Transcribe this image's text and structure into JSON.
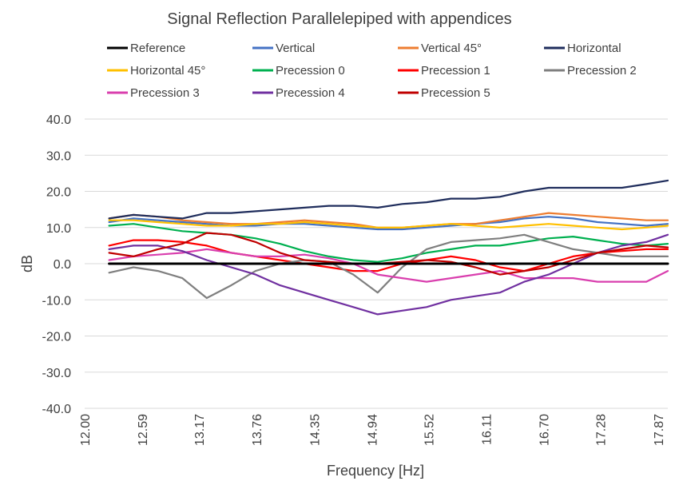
{
  "chart_data": {
    "type": "line",
    "title": "Signal Reflection Parallelepiped with appendices",
    "xlabel": "Frequency [Hz]",
    "ylabel": "dB",
    "xlim": [
      12.0,
      17.97
    ],
    "ylim": [
      -40,
      40
    ],
    "x_ticks": [
      "12.00",
      "12.59",
      "13.17",
      "13.76",
      "14.35",
      "14.94",
      "15.52",
      "16.11",
      "16.70",
      "17.28",
      "17.87"
    ],
    "y_ticks": [
      "40.0",
      "30.0",
      "20.0",
      "10.0",
      "0.0",
      "-10.0",
      "-20.0",
      "-30.0",
      "-40.0"
    ],
    "grid": true,
    "legend_position": "top",
    "x": [
      12.25,
      12.5,
      12.75,
      13.0,
      13.25,
      13.5,
      13.75,
      14.0,
      14.25,
      14.5,
      14.75,
      15.0,
      15.25,
      15.5,
      15.75,
      16.0,
      16.25,
      16.5,
      16.75,
      17.0,
      17.25,
      17.5,
      17.75,
      17.97
    ],
    "series": [
      {
        "name": "Reference",
        "color": "#000000",
        "values": [
          0,
          0,
          0,
          0,
          0,
          0,
          0,
          0,
          0,
          0,
          0,
          0,
          0,
          0,
          0,
          0,
          0,
          0,
          0,
          0,
          0,
          0,
          0,
          0
        ]
      },
      {
        "name": "Vertical",
        "color": "#4472C4",
        "values": [
          11.5,
          12.5,
          12,
          11.5,
          11,
          10.5,
          10.5,
          11,
          11,
          10.5,
          10,
          9.5,
          9.5,
          10,
          10.5,
          11,
          11.5,
          12.5,
          13,
          12.5,
          11.5,
          11,
          10.5,
          11
        ]
      },
      {
        "name": "Vertical 45°",
        "color": "#ED7D31",
        "values": [
          12.5,
          13.5,
          13,
          12,
          11.5,
          11,
          11,
          11.5,
          12,
          11.5,
          11,
          10,
          10,
          10.5,
          11,
          11,
          12,
          13,
          14,
          13.5,
          13,
          12.5,
          12,
          12
        ]
      },
      {
        "name": "Horizontal",
        "color": "#1F2D5C",
        "values": [
          12.5,
          13.5,
          13,
          12.5,
          14,
          14,
          14.5,
          15,
          15.5,
          16,
          16,
          15.5,
          16.5,
          17,
          18,
          18,
          18.5,
          20,
          21,
          21,
          21,
          21,
          22,
          23
        ]
      },
      {
        "name": "Horizontal 45°",
        "color": "#FFC000",
        "values": [
          12,
          12,
          11.5,
          11,
          10.5,
          10.5,
          11,
          11,
          11.5,
          11,
          10.5,
          10,
          10,
          10.5,
          11,
          10.5,
          10,
          10.5,
          11,
          10.5,
          10,
          9.5,
          10,
          10.5
        ]
      },
      {
        "name": "Precession 0",
        "color": "#00B050",
        "values": [
          10.5,
          11,
          10,
          9,
          8.5,
          8,
          7,
          5.5,
          3.5,
          2,
          1,
          0.5,
          1.5,
          3,
          4,
          5,
          5,
          6,
          7,
          7.5,
          6.5,
          5.5,
          5,
          5.5
        ]
      },
      {
        "name": "Precession 1",
        "color": "#FF0000",
        "values": [
          5,
          6.5,
          6.5,
          6,
          5,
          3,
          2,
          1,
          0,
          -1,
          -2,
          -2,
          0,
          1,
          2,
          1,
          -1,
          -2,
          0,
          2,
          3,
          3.5,
          4,
          4
        ]
      },
      {
        "name": "Precession 2",
        "color": "#7F7F7F",
        "values": [
          -2.5,
          -1,
          -2,
          -4,
          -9.5,
          -6,
          -2,
          0,
          1,
          0.5,
          -3,
          -8,
          -1,
          4,
          6,
          6.5,
          7,
          8,
          6,
          4,
          3,
          2,
          2,
          2
        ]
      },
      {
        "name": "Precession 3",
        "color": "#D93FAE",
        "values": [
          1,
          2,
          2.5,
          3,
          4,
          3,
          2,
          2,
          2.5,
          1.5,
          0,
          -3,
          -4,
          -5,
          -4,
          -3,
          -2,
          -4,
          -4,
          -4,
          -5,
          -5,
          -5,
          -2
        ]
      },
      {
        "name": "Precession 4",
        "color": "#7030A0",
        "values": [
          4,
          5,
          5,
          3.5,
          1,
          -1,
          -3,
          -6,
          -8,
          -10,
          -12,
          -14,
          -13,
          -12,
          -10,
          -9,
          -8,
          -5,
          -3,
          0,
          3,
          5,
          6,
          8
        ]
      },
      {
        "name": "Precession 5",
        "color": "#C00000",
        "values": [
          3,
          2,
          4,
          5.5,
          8.5,
          8,
          6,
          3,
          1,
          0.5,
          0,
          0,
          0.5,
          1,
          0.5,
          -1,
          -3,
          -2,
          -1,
          1,
          3,
          4,
          5,
          4.5
        ]
      }
    ]
  }
}
